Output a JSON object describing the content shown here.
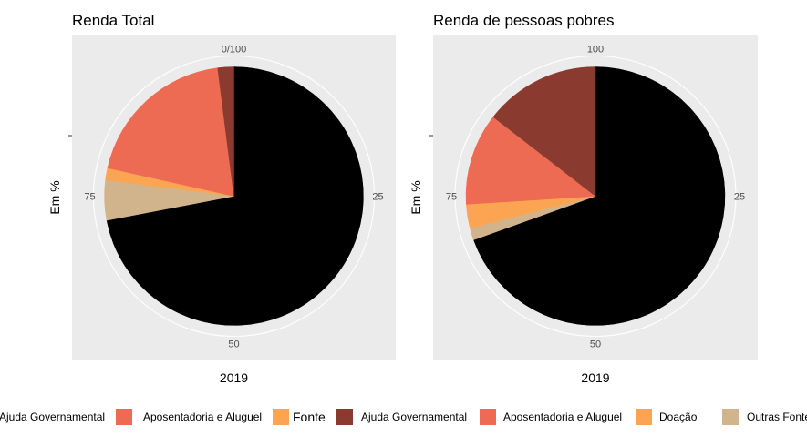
{
  "chart_data": [
    {
      "type": "pie",
      "title": "Renda Total",
      "xlabel": "2019",
      "ylabel": "Em %",
      "angle_ticks": [
        "0/100",
        "25",
        "50",
        "75"
      ],
      "slices": [
        {
          "label": "Ajuda Governamental",
          "value": 72.0,
          "color": "#000000"
        },
        {
          "label": "Outras Fontes",
          "value": 5.0,
          "color": "#d2b48c"
        },
        {
          "label": "Doação",
          "value": 1.5,
          "color": "#fba553"
        },
        {
          "label": "Aposentadoria e Aluguel",
          "value": 19.5,
          "color": "#ee6b53"
        },
        {
          "label": "Ajuda Governamental",
          "value": 2.0,
          "color": "#8b3a30"
        }
      ]
    },
    {
      "type": "pie",
      "title": "Renda de pessoas pobres",
      "xlabel": "2019",
      "ylabel": "Em %",
      "angle_ticks": [
        "100",
        "25",
        "50",
        "75"
      ],
      "slices": [
        {
          "label": "Ajuda Governamental",
          "value": 69.5,
          "color": "#000000"
        },
        {
          "label": "Outras Fontes",
          "value": 1.5,
          "color": "#d2b48c"
        },
        {
          "label": "Doação",
          "value": 3.0,
          "color": "#fba553"
        },
        {
          "label": "Aposentadoria e Aluguel",
          "value": 11.5,
          "color": "#ee6b53"
        },
        {
          "label": "Ajuda Governamental",
          "value": 14.5,
          "color": "#8b3a30"
        }
      ]
    }
  ],
  "legend": {
    "left": [
      {
        "label": "Ajuda Governamental",
        "color": "#ee6b53"
      },
      {
        "label": "Aposentadoria e Aluguel",
        "color": "#fba553"
      }
    ],
    "title": "Fonte",
    "right": [
      {
        "label": "Ajuda Governamental",
        "color": "#8b3a30"
      },
      {
        "label": "Aposentadoria e Aluguel",
        "color": "#ee6b53"
      },
      {
        "label": "Doação",
        "color": "#fba553"
      },
      {
        "label": "Outras Fontes",
        "color": "#d2b48c"
      }
    ]
  }
}
